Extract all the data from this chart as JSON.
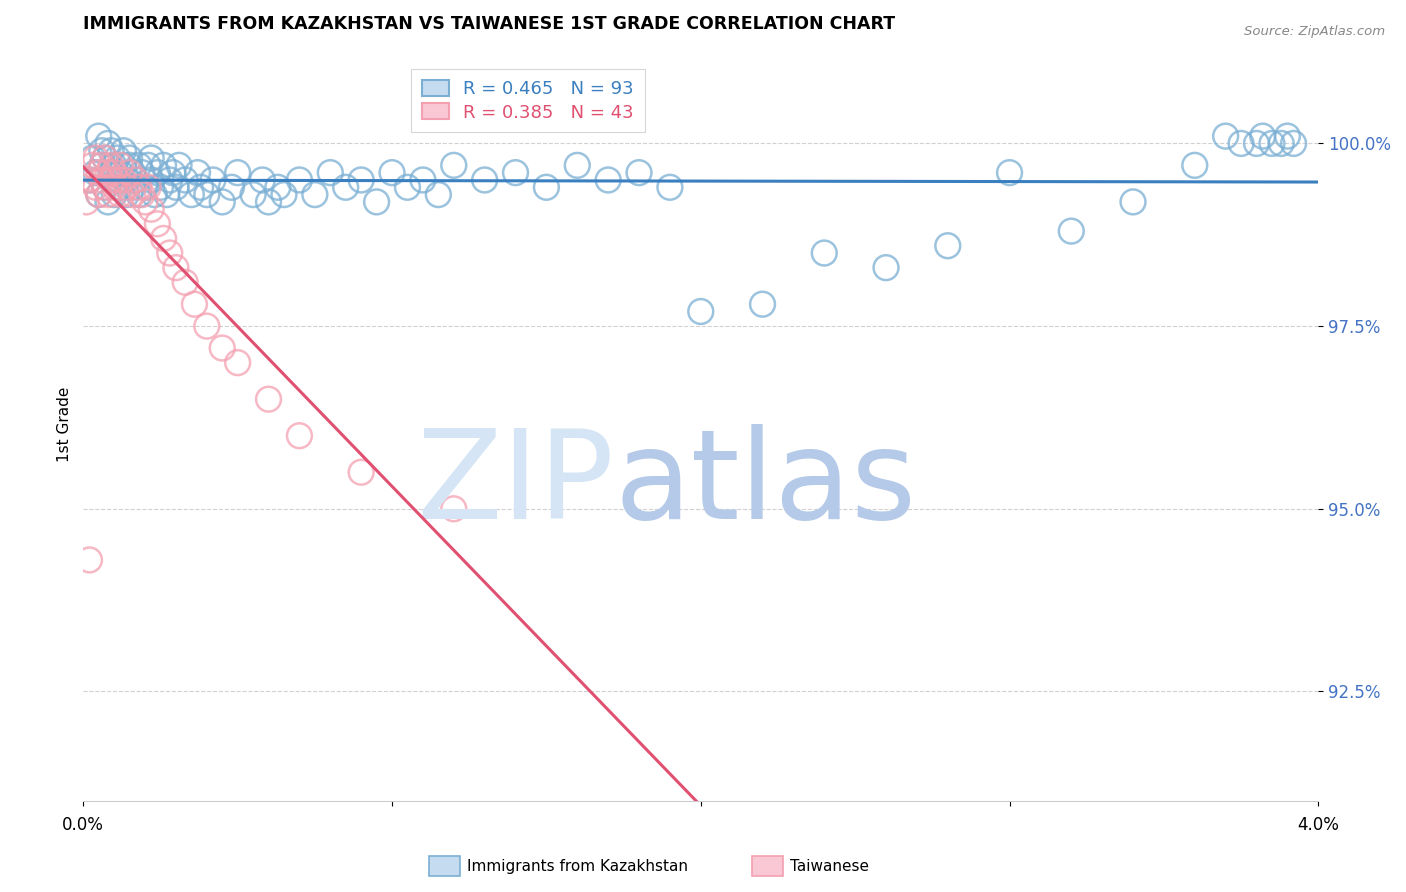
{
  "title": "IMMIGRANTS FROM KAZAKHSTAN VS TAIWANESE 1ST GRADE CORRELATION CHART",
  "source": "Source: ZipAtlas.com",
  "ylabel": "1st Grade",
  "xmin": 0.0,
  "xmax": 4.0,
  "ymin": 91.0,
  "ymax": 101.3,
  "yticks": [
    92.5,
    95.0,
    97.5,
    100.0
  ],
  "ytick_labels": [
    "92.5%",
    "95.0%",
    "97.5%",
    "100.0%"
  ],
  "legend_blue_label": "Immigrants from Kazakhstan",
  "legend_pink_label": "Taiwanese",
  "R_blue": 0.465,
  "N_blue": 93,
  "R_pink": 0.385,
  "N_pink": 43,
  "blue_color": "#7BAFD4",
  "pink_color": "#F4A0B0",
  "blue_line_color": "#3A7FBF",
  "pink_line_color": "#E05070",
  "watermark_zip_color": "#D0DFF0",
  "watermark_atlas_color": "#B8CCE8",
  "blue_points_x": [
    0.02,
    0.03,
    0.04,
    0.05,
    0.05,
    0.06,
    0.06,
    0.07,
    0.07,
    0.08,
    0.08,
    0.09,
    0.09,
    0.1,
    0.1,
    0.11,
    0.11,
    0.12,
    0.12,
    0.13,
    0.13,
    0.14,
    0.14,
    0.15,
    0.15,
    0.16,
    0.16,
    0.17,
    0.18,
    0.18,
    0.19,
    0.2,
    0.21,
    0.22,
    0.22,
    0.23,
    0.24,
    0.25,
    0.26,
    0.27,
    0.28,
    0.29,
    0.3,
    0.31,
    0.33,
    0.35,
    0.37,
    0.38,
    0.4,
    0.42,
    0.45,
    0.48,
    0.5,
    0.55,
    0.58,
    0.6,
    0.63,
    0.65,
    0.7,
    0.75,
    0.8,
    0.85,
    0.9,
    0.95,
    1.0,
    1.05,
    1.1,
    1.15,
    1.2,
    1.3,
    1.4,
    1.5,
    1.6,
    1.7,
    1.8,
    1.9,
    2.0,
    2.2,
    2.4,
    2.6,
    2.8,
    3.0,
    3.2,
    3.4,
    3.6,
    3.7,
    3.75,
    3.8,
    3.82,
    3.85,
    3.88,
    3.9,
    3.92
  ],
  "blue_points_y": [
    99.5,
    99.8,
    99.6,
    100.1,
    99.3,
    99.7,
    99.9,
    99.4,
    99.8,
    100.0,
    99.2,
    99.6,
    99.9,
    99.3,
    99.7,
    99.5,
    99.8,
    99.4,
    99.6,
    99.7,
    99.9,
    99.3,
    99.5,
    99.7,
    99.8,
    99.4,
    99.6,
    99.5,
    99.7,
    99.3,
    99.6,
    99.4,
    99.7,
    99.5,
    99.8,
    99.3,
    99.6,
    99.4,
    99.7,
    99.3,
    99.5,
    99.6,
    99.4,
    99.7,
    99.5,
    99.3,
    99.6,
    99.4,
    99.3,
    99.5,
    99.2,
    99.4,
    99.6,
    99.3,
    99.5,
    99.2,
    99.4,
    99.3,
    99.5,
    99.3,
    99.6,
    99.4,
    99.5,
    99.2,
    99.6,
    99.4,
    99.5,
    99.3,
    99.7,
    99.5,
    99.6,
    99.4,
    99.7,
    99.5,
    99.6,
    99.4,
    97.7,
    97.8,
    98.5,
    98.3,
    98.6,
    99.6,
    98.8,
    99.2,
    99.7,
    100.1,
    100.0,
    100.0,
    100.1,
    100.0,
    100.0,
    100.1,
    100.0
  ],
  "pink_points_x": [
    0.01,
    0.02,
    0.03,
    0.04,
    0.04,
    0.05,
    0.05,
    0.06,
    0.06,
    0.07,
    0.07,
    0.08,
    0.08,
    0.09,
    0.09,
    0.1,
    0.1,
    0.11,
    0.12,
    0.12,
    0.13,
    0.14,
    0.15,
    0.16,
    0.17,
    0.18,
    0.19,
    0.2,
    0.21,
    0.22,
    0.24,
    0.26,
    0.28,
    0.3,
    0.33,
    0.36,
    0.4,
    0.45,
    0.5,
    0.6,
    0.7,
    0.9,
    1.2
  ],
  "pink_points_y": [
    99.2,
    99.5,
    99.7,
    99.4,
    99.8,
    99.3,
    99.6,
    99.5,
    99.7,
    99.4,
    99.8,
    99.3,
    99.6,
    99.5,
    99.7,
    99.4,
    99.6,
    99.5,
    99.3,
    99.7,
    99.5,
    99.4,
    99.6,
    99.3,
    99.5,
    99.4,
    99.3,
    99.2,
    99.4,
    99.1,
    98.9,
    98.7,
    98.5,
    98.3,
    98.1,
    97.8,
    97.5,
    97.2,
    97.0,
    96.5,
    96.0,
    95.5,
    95.0
  ]
}
